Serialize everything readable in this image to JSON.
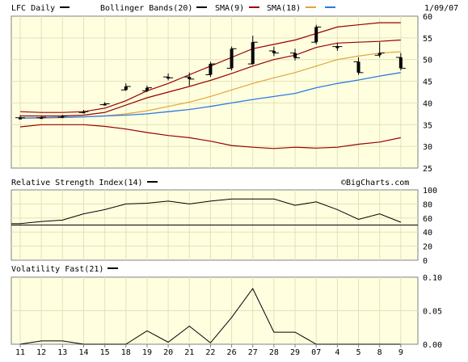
{
  "header": {
    "title": "LFC Daily",
    "date": "1/09/07",
    "watermark": "©BigCharts.com",
    "legend": [
      {
        "label": "Bollinger Bands(20)",
        "color": "#000000"
      },
      {
        "label": "SMA(9)",
        "color": "#990000"
      },
      {
        "label": "SMA(18)",
        "color": "#e3a33a"
      },
      {
        "label": "",
        "color": "#2a7ae2"
      }
    ]
  },
  "colors": {
    "plot_bg": "#ffffe0",
    "grid": "#e2e2b6",
    "bollinger": "#990000",
    "sma9": "#990000",
    "sma18": "#e3a33a",
    "sma50": "#2a7ae2",
    "price": "#000000"
  },
  "chart_data": [
    {
      "type": "line",
      "panel": "price",
      "ylim": [
        25,
        60
      ],
      "yticks": [
        25,
        30,
        35,
        40,
        45,
        50,
        55,
        60
      ],
      "x": [
        "11",
        "12",
        "13",
        "14",
        "15",
        "18",
        "19",
        "20",
        "21",
        "22",
        "26",
        "27",
        "28",
        "29",
        "07",
        "4",
        "5",
        "8",
        "9"
      ],
      "ohlc": [
        {
          "open": 36.6,
          "high": 37.2,
          "low": 36.2,
          "close": 36.6
        },
        {
          "open": 36.6,
          "high": 37.0,
          "low": 36.4,
          "close": 36.7
        },
        {
          "open": 36.7,
          "high": 37.3,
          "low": 36.5,
          "close": 37.0
        },
        {
          "open": 37.8,
          "high": 38.4,
          "low": 37.6,
          "close": 38.0
        },
        {
          "open": 39.6,
          "high": 40.2,
          "low": 39.4,
          "close": 39.8
        },
        {
          "open": 43.0,
          "high": 44.5,
          "low": 42.8,
          "close": 43.8
        },
        {
          "open": 42.8,
          "high": 44.0,
          "low": 42.5,
          "close": 43.5
        },
        {
          "open": 46.0,
          "high": 46.8,
          "low": 45.2,
          "close": 45.8
        },
        {
          "open": 46.0,
          "high": 47.0,
          "low": 44.0,
          "close": 45.5
        },
        {
          "open": 46.5,
          "high": 49.5,
          "low": 46.0,
          "close": 49.0
        },
        {
          "open": 48.0,
          "high": 53.0,
          "low": 47.5,
          "close": 52.5
        },
        {
          "open": 49.0,
          "high": 55.5,
          "low": 48.8,
          "close": 54.0
        },
        {
          "open": 52.0,
          "high": 53.0,
          "low": 50.8,
          "close": 51.5
        },
        {
          "open": 51.5,
          "high": 52.5,
          "low": 49.8,
          "close": 50.4
        },
        {
          "open": 54.0,
          "high": 58.0,
          "low": 53.5,
          "close": 57.5
        },
        {
          "open": 53.0,
          "high": 53.8,
          "low": 52.0,
          "close": 53.0
        },
        {
          "open": 49.5,
          "high": 50.5,
          "low": 46.5,
          "close": 47.0
        },
        {
          "open": 51.0,
          "high": 54.0,
          "low": 50.5,
          "close": 51.5
        },
        {
          "open": 50.5,
          "high": 51.5,
          "low": 47.5,
          "close": 48.0
        }
      ],
      "series": [
        {
          "key": "bb_upper",
          "values": [
            38.0,
            37.8,
            37.8,
            38.0,
            38.8,
            40.5,
            42.8,
            44.5,
            46.5,
            48.5,
            50.5,
            52.5,
            53.5,
            54.5,
            56.0,
            57.5,
            58.0,
            58.5,
            58.5
          ]
        },
        {
          "key": "bb_lower",
          "values": [
            34.5,
            35.0,
            35.0,
            35.0,
            34.6,
            34.0,
            33.2,
            32.5,
            32.0,
            31.2,
            30.2,
            29.8,
            29.5,
            29.8,
            29.6,
            29.8,
            30.5,
            31.0,
            32.0
          ]
        },
        {
          "key": "sma9",
          "values": [
            37.0,
            37.0,
            37.0,
            37.2,
            37.8,
            39.5,
            41.2,
            42.5,
            43.8,
            45.2,
            46.8,
            48.5,
            50.0,
            51.0,
            52.8,
            53.8,
            54.0,
            54.2,
            54.5
          ]
        },
        {
          "key": "sma18",
          "values": [
            36.5,
            36.5,
            36.6,
            36.8,
            37.0,
            37.5,
            38.2,
            39.2,
            40.2,
            41.5,
            43.0,
            44.5,
            45.8,
            47.0,
            48.5,
            50.0,
            50.8,
            51.5,
            51.8
          ]
        },
        {
          "key": "sma50",
          "values": [
            36.5,
            36.6,
            36.7,
            36.8,
            37.0,
            37.2,
            37.5,
            38.0,
            38.5,
            39.2,
            40.0,
            40.8,
            41.5,
            42.2,
            43.5,
            44.5,
            45.3,
            46.2,
            47.0
          ]
        }
      ]
    },
    {
      "type": "line",
      "panel": "rsi",
      "title": "Relative Strength Index(14)",
      "ylim": [
        0,
        100
      ],
      "yticks": [
        0,
        20,
        40,
        60,
        80,
        100
      ],
      "reference_line": 50,
      "x": [
        "11",
        "12",
        "13",
        "14",
        "15",
        "18",
        "19",
        "20",
        "21",
        "22",
        "26",
        "27",
        "28",
        "29",
        "07",
        "4",
        "5",
        "8",
        "9"
      ],
      "values": [
        52,
        55,
        57,
        66,
        72,
        80,
        81,
        84,
        80,
        84,
        87,
        87,
        87,
        78,
        83,
        72,
        58,
        66,
        54
      ]
    },
    {
      "type": "line",
      "panel": "volatility",
      "title": "Volatility Fast(21)",
      "ylim": [
        0,
        0.1
      ],
      "yticks": [
        "0.00",
        "0.05",
        "0.10"
      ],
      "x": [
        "11",
        "12",
        "13",
        "14",
        "15",
        "18",
        "19",
        "20",
        "21",
        "22",
        "26",
        "27",
        "28",
        "29",
        "07",
        "4",
        "5",
        "8",
        "9"
      ],
      "values": [
        0.0,
        0.005,
        0.005,
        0.0,
        0.0,
        0.0,
        0.02,
        0.003,
        0.027,
        0.002,
        0.04,
        0.083,
        0.018,
        0.018,
        0.0,
        0.0,
        0.0,
        0.0,
        0.0
      ]
    }
  ]
}
